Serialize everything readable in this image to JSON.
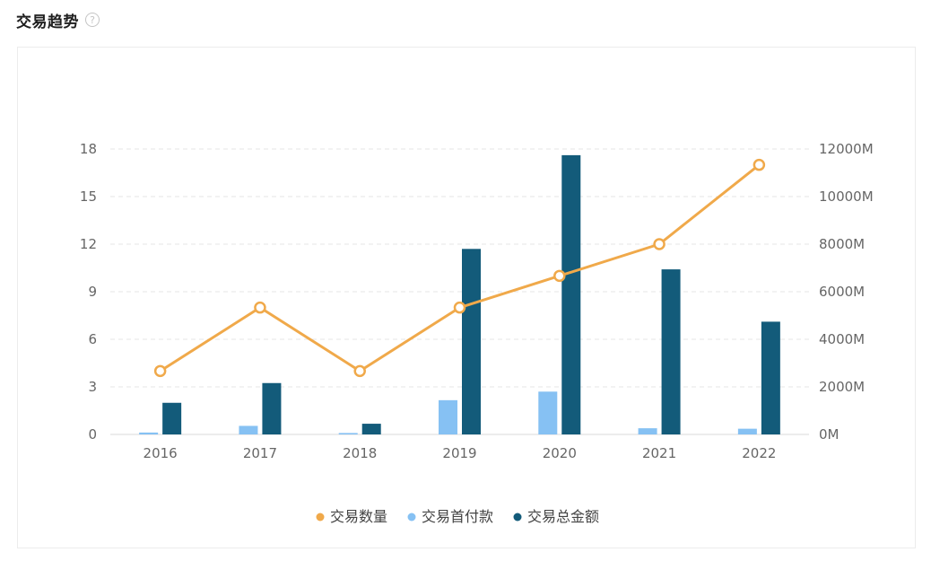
{
  "header": {
    "title": "交易趋势",
    "help_icon": "question-circle-icon"
  },
  "chart_data": {
    "type": "bar",
    "categories": [
      "2016",
      "2017",
      "2018",
      "2019",
      "2020",
      "2021",
      "2022"
    ],
    "series": [
      {
        "name": "交易数量",
        "type": "line",
        "axis": "left",
        "color": "#f0a94a",
        "values": [
          4,
          8,
          4,
          8,
          10,
          12,
          17
        ]
      },
      {
        "name": "交易首付款",
        "type": "bar",
        "axis": "right",
        "color": "#86c1f3",
        "values": [
          80,
          360,
          60,
          1440,
          1800,
          260,
          240
        ]
      },
      {
        "name": "交易总金额",
        "type": "bar",
        "axis": "right",
        "color": "#135b7a",
        "values": [
          1330,
          2160,
          450,
          7800,
          11740,
          6940,
          4740
        ]
      }
    ],
    "y_left": {
      "ticks": [
        "0",
        "3",
        "6",
        "9",
        "12",
        "15",
        "18"
      ],
      "range": [
        0,
        18
      ]
    },
    "y_right": {
      "ticks": [
        "0M",
        "2000M",
        "4000M",
        "6000M",
        "8000M",
        "10000M",
        "12000M"
      ],
      "range": [
        0,
        12000
      ],
      "unit": "M"
    },
    "grid": true,
    "legend": "bottom-center"
  }
}
